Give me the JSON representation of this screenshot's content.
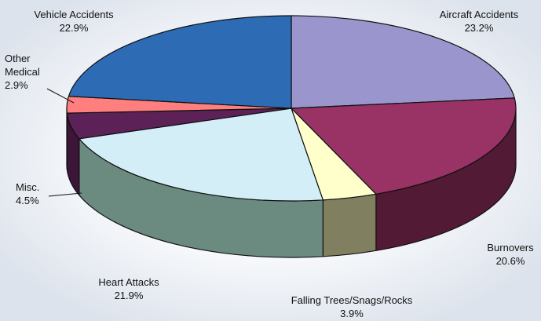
{
  "chart_data": {
    "type": "pie",
    "style": "3d",
    "title": "",
    "slices": [
      {
        "name": "Aircraft Accidents",
        "value": 23.2,
        "label": "23.2%",
        "color": "#9a96cd",
        "side": "#6f6ba0"
      },
      {
        "name": "Burnovers",
        "value": 20.6,
        "label": "20.6%",
        "color": "#993366",
        "side": "#521a35"
      },
      {
        "name": "Falling Trees/Snags/Rocks",
        "value": 3.9,
        "label": "3.9%",
        "color": "#ffffcc",
        "side": "#808060"
      },
      {
        "name": "Heart Attacks",
        "value": 21.9,
        "label": "21.9%",
        "color": "#d4eef7",
        "side": "#6b8a80"
      },
      {
        "name": "Misc.",
        "value": 4.5,
        "label": "4.5%",
        "color": "#5c2257",
        "side": "#3c1538"
      },
      {
        "name": "Other Medical",
        "value": 2.9,
        "label": "2.9%",
        "color": "#ff7f7f",
        "side": "#b05858"
      },
      {
        "name": "Vehicle Accidents",
        "value": 22.9,
        "label": "22.9%",
        "color": "#2d6bb4",
        "side": "#1c4778"
      }
    ]
  }
}
